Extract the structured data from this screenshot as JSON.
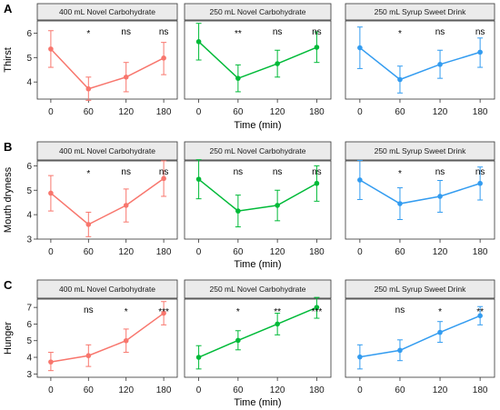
{
  "figure": {
    "xlabel": "Time (min)"
  },
  "chart_data": [
    {
      "type": "line",
      "row": "A",
      "ylabel": "Thirst",
      "ylim": [
        3.3,
        6.5
      ],
      "yticks": [
        4,
        5,
        6
      ],
      "x": [
        0,
        60,
        120,
        180
      ],
      "xticks": [
        "0",
        "60",
        "120",
        "180"
      ],
      "xlabel": "Time (min)",
      "panels": [
        {
          "name": "400 mL Novel Carbohydrate",
          "color": "#F8766D",
          "values": [
            5.35,
            3.72,
            4.2,
            4.98
          ],
          "lower": [
            4.6,
            3.25,
            3.6,
            4.3
          ],
          "upper": [
            6.1,
            4.2,
            4.8,
            5.62
          ],
          "sig": [
            "",
            "*",
            "ns",
            "ns"
          ]
        },
        {
          "name": "250 mL Novel Carbohydrate",
          "color": "#00BA38",
          "values": [
            5.65,
            4.15,
            4.75,
            5.42
          ],
          "lower": [
            4.9,
            3.6,
            4.2,
            4.8
          ],
          "upper": [
            6.4,
            4.7,
            5.3,
            6.05
          ],
          "sig": [
            "",
            "**",
            "ns",
            "ns"
          ]
        },
        {
          "name": "250 mL Syrup Sweet Drink",
          "color": "#339CF0",
          "values": [
            5.4,
            4.1,
            4.72,
            5.22
          ],
          "lower": [
            4.55,
            3.55,
            4.15,
            4.6
          ],
          "upper": [
            6.25,
            4.65,
            5.3,
            5.8
          ],
          "sig": [
            "",
            "*",
            "ns",
            "ns"
          ]
        }
      ]
    },
    {
      "type": "line",
      "row": "B",
      "ylabel": "Mouth dryness",
      "ylim": [
        3.0,
        6.2
      ],
      "yticks": [
        3,
        4,
        5,
        6
      ],
      "x": [
        0,
        60,
        120,
        180
      ],
      "xticks": [
        "0",
        "60",
        "120",
        "180"
      ],
      "xlabel": "Time (min)",
      "panels": [
        {
          "name": "400 mL Novel Carbohydrate",
          "color": "#F8766D",
          "values": [
            4.88,
            3.6,
            4.38,
            5.48
          ],
          "lower": [
            4.15,
            3.1,
            3.7,
            4.75
          ],
          "upper": [
            5.6,
            4.1,
            5.05,
            6.2
          ],
          "sig": [
            "",
            "*",
            "ns",
            "ns"
          ]
        },
        {
          "name": "250 mL Novel Carbohydrate",
          "color": "#00BA38",
          "values": [
            5.45,
            4.15,
            4.38,
            5.28
          ],
          "lower": [
            4.65,
            3.5,
            3.75,
            4.55
          ],
          "upper": [
            6.25,
            4.8,
            5.0,
            6.0
          ],
          "sig": [
            "",
            "ns",
            "ns",
            "ns"
          ]
        },
        {
          "name": "250 mL Syrup Sweet Drink",
          "color": "#339CF0",
          "values": [
            5.42,
            4.45,
            4.75,
            5.28
          ],
          "lower": [
            4.62,
            3.8,
            4.1,
            4.6
          ],
          "upper": [
            6.22,
            5.1,
            5.4,
            5.95
          ],
          "sig": [
            "",
            "*",
            "ns",
            "ns"
          ]
        }
      ]
    },
    {
      "type": "line",
      "row": "C",
      "ylabel": "Hunger",
      "ylim": [
        2.8,
        7.5
      ],
      "yticks": [
        3,
        4,
        5,
        6,
        7
      ],
      "x": [
        0,
        60,
        120,
        180
      ],
      "xticks": [
        "0",
        "60",
        "120",
        "180"
      ],
      "xlabel": "Time (min)",
      "panels": [
        {
          "name": "400 mL Novel Carbohydrate",
          "color": "#F8766D",
          "values": [
            3.72,
            4.1,
            5.0,
            6.65
          ],
          "lower": [
            3.2,
            3.45,
            4.3,
            5.95
          ],
          "upper": [
            4.3,
            4.75,
            5.7,
            7.35
          ],
          "sig": [
            "",
            "ns",
            "*",
            "***"
          ]
        },
        {
          "name": "250 mL Novel Carbohydrate",
          "color": "#00BA38",
          "values": [
            4.0,
            5.02,
            6.0,
            7.0
          ],
          "lower": [
            3.3,
            4.45,
            5.35,
            6.35
          ],
          "upper": [
            4.7,
            5.6,
            6.65,
            7.6
          ],
          "sig": [
            "",
            "*",
            "**",
            "***"
          ]
        },
        {
          "name": "250 mL Syrup Sweet Drink",
          "color": "#339CF0",
          "values": [
            4.02,
            4.42,
            5.5,
            6.5
          ],
          "lower": [
            3.3,
            3.8,
            4.9,
            5.95
          ],
          "upper": [
            4.75,
            5.05,
            6.15,
            7.05
          ],
          "sig": [
            "",
            "ns",
            "*",
            "**"
          ]
        }
      ]
    }
  ]
}
